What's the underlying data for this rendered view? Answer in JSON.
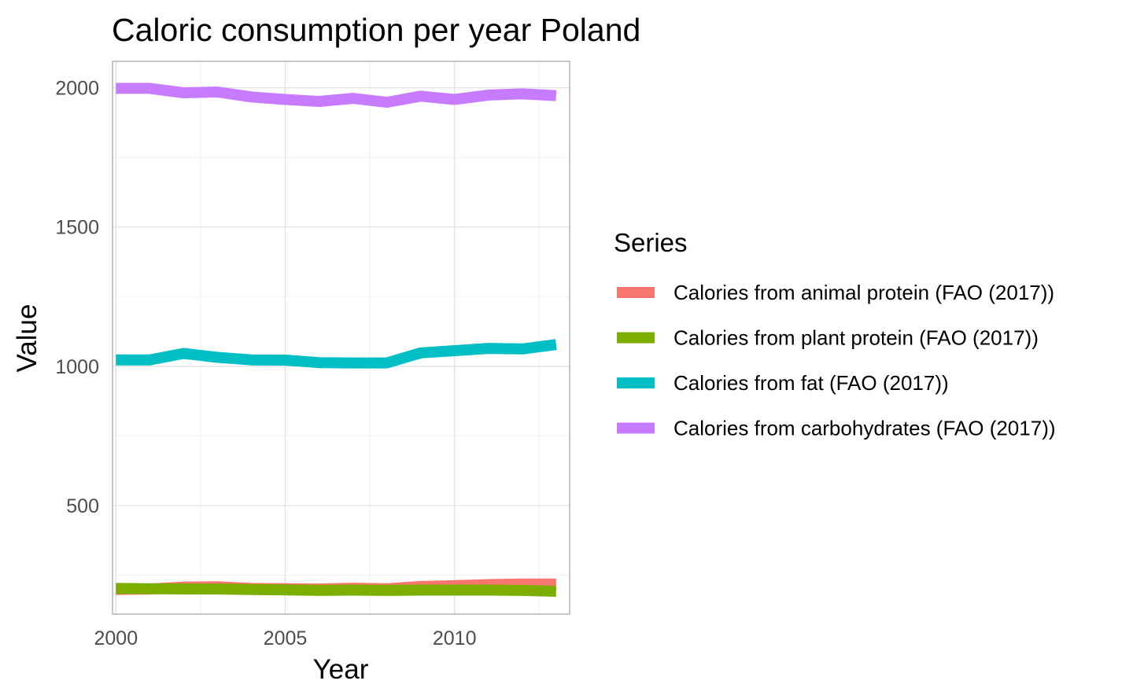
{
  "chart_data": {
    "type": "line",
    "title": "Caloric consumption per year Poland",
    "xlabel": "Year",
    "ylabel": "Value",
    "xlim": [
      1999.9,
      2013.4
    ],
    "ylim": [
      110,
      2095
    ],
    "x_ticks": [
      2000,
      2005,
      2010
    ],
    "y_ticks": [
      500,
      1000,
      1500,
      2000
    ],
    "grid": true,
    "legend": {
      "title": "Series",
      "position": "right"
    },
    "x": [
      2000,
      2001,
      2002,
      2003,
      2004,
      2005,
      2006,
      2007,
      2008,
      2009,
      2010,
      2011,
      2012,
      2013
    ],
    "series": [
      {
        "name": "Calories from animal protein (FAO (2017))",
        "color": "#F8766D",
        "values": [
          198,
          200,
          207,
          208,
          202,
          201,
          200,
          203,
          201,
          209,
          212,
          216,
          218,
          218
        ]
      },
      {
        "name": "Calories from plant protein (FAO (2017))",
        "color": "#7CAE00",
        "values": [
          202,
          201,
          200,
          200,
          198,
          197,
          195,
          196,
          195,
          196,
          196,
          196,
          195,
          192
        ]
      },
      {
        "name": "Calories from fat (FAO (2017))",
        "color": "#00BFC4",
        "values": [
          1023,
          1023,
          1046,
          1032,
          1023,
          1022,
          1013,
          1012,
          1012,
          1048,
          1056,
          1064,
          1062,
          1078
        ]
      },
      {
        "name": "Calories from carbohydrates (FAO (2017))",
        "color": "#C77CFF",
        "values": [
          1998,
          1998,
          1982,
          1985,
          1967,
          1958,
          1951,
          1962,
          1948,
          1970,
          1958,
          1974,
          1978,
          1972
        ]
      }
    ]
  }
}
